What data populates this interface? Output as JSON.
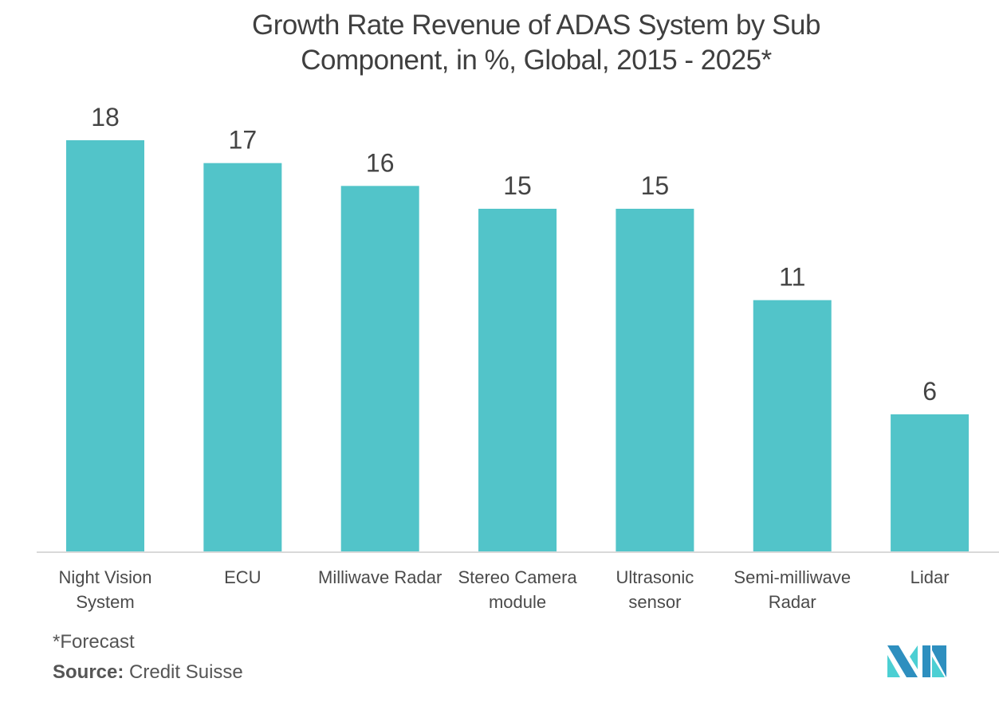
{
  "title_lines": [
    "Growth Rate Revenue of ADAS System by Sub",
    "Component, in %, Global, 2015 - 2025*"
  ],
  "footnote": "*Forecast",
  "source": {
    "label": "Source:",
    "value": "Credit Suisse"
  },
  "colors": {
    "bar": "#52c4c9",
    "axis": "#d9d9d9",
    "label": "#444444",
    "logo_dark": "#2e8fbf",
    "logo_light": "#4ccfd3"
  },
  "logo": {
    "name": "mordor-intelligence-logo"
  },
  "chart_data": {
    "type": "bar",
    "title": "Growth Rate Revenue of ADAS System by Sub Component, in %, Global, 2015 - 2025*",
    "xlabel": "",
    "ylabel": "",
    "ylim": [
      0,
      18
    ],
    "grid": false,
    "legend": "none",
    "categories": [
      [
        "Night Vision",
        "System"
      ],
      [
        "ECU"
      ],
      [
        "Milliwave Radar"
      ],
      [
        "Stereo Camera",
        "module"
      ],
      [
        "Ultrasonic",
        "sensor"
      ],
      [
        "Semi-milliwave",
        "Radar"
      ],
      [
        "Lidar"
      ]
    ],
    "values": [
      18,
      17,
      16,
      15,
      15,
      11,
      6
    ],
    "data_labels": [
      "18",
      "17",
      "16",
      "15",
      "15",
      "11",
      "6"
    ]
  }
}
